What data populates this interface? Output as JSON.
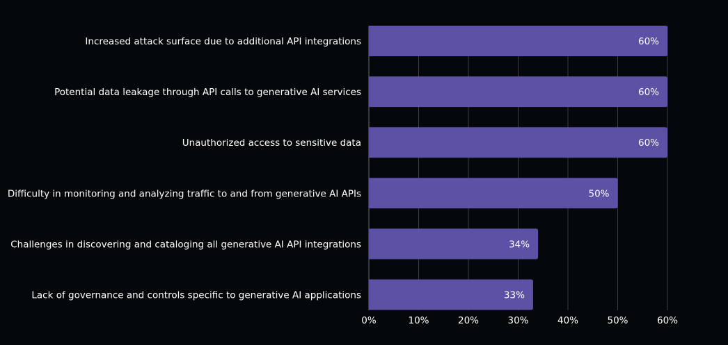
{
  "chart_data": {
    "type": "bar",
    "orientation": "horizontal",
    "title": "",
    "xlabel": "",
    "ylabel": "",
    "categories": [
      "Increased attack surface due to additional API integrations",
      "Potential data leakage through API calls to generative AI services",
      "Unauthorized access to sensitive data",
      "Difficulty in monitoring and analyzing traffic to and from generative AI APIs",
      "Challenges in discovering and cataloging all generative AI API integrations",
      "Lack of governance and controls specific to generative AI applications"
    ],
    "values": [
      60,
      60,
      60,
      50,
      34,
      33
    ],
    "value_labels": [
      "60%",
      "60%",
      "60%",
      "50%",
      "34%",
      "33%"
    ],
    "xlim": [
      0,
      60
    ],
    "x_ticks": [
      0,
      10,
      20,
      30,
      40,
      50,
      60
    ],
    "x_tick_labels": [
      "0%",
      "10%",
      "20%",
      "30%",
      "40%",
      "50%",
      "60%"
    ],
    "grid": "vertical",
    "legend": "none",
    "colors": {
      "bar": "#5d51a5",
      "background": "#05080a",
      "grid": "#3a3d42",
      "text": "#ffffff"
    }
  }
}
